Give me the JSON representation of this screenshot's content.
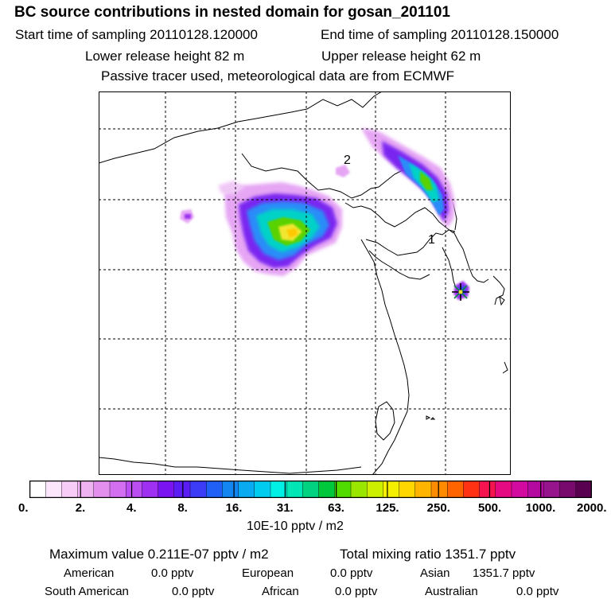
{
  "header": {
    "title": "BC  source contributions in nested domain for gosan_201101",
    "start_time": "Start time of sampling 20110128.120000",
    "end_time": "End time of sampling 20110128.150000",
    "lower_height": "Lower release height   82 m",
    "upper_height": "Upper release height   62 m",
    "tracer_note": "Passive tracer used, meteorological data are from ECMWF"
  },
  "map": {
    "labels": {
      "source_1": "1",
      "source_2": "2"
    },
    "icons": [
      "receptor-star-icon"
    ]
  },
  "colorbar": {
    "colors": [
      "#ffffff",
      "#fce6fc",
      "#f7ccf7",
      "#f0b3f2",
      "#e28fee",
      "#d26ef0",
      "#bb4ef0",
      "#9f30f2",
      "#7a14f0",
      "#5a1ef5",
      "#3c3cf7",
      "#2060f7",
      "#1486f2",
      "#0aaaf0",
      "#00ccf0",
      "#00f0e6",
      "#00e6b4",
      "#00d282",
      "#00c83c",
      "#50dc00",
      "#9be600",
      "#cdf000",
      "#f5f000",
      "#ffd700",
      "#ffb400",
      "#ff8c00",
      "#ff6400",
      "#ff3214",
      "#f51450",
      "#e60a82",
      "#d20aa0",
      "#b40aa0",
      "#96148c",
      "#780a6e",
      "#5a0050"
    ],
    "ticks": [
      "0.",
      "2.",
      "4.",
      "8.",
      "16.",
      "31.",
      "63.",
      "125.",
      "250.",
      "500.",
      "1000.",
      "2000."
    ],
    "unit": "10E-10 pptv / m2"
  },
  "stats": {
    "max_value": "Maximum value  0.211E-07 pptv / m2",
    "total_mixing": "Total mixing ratio     1351.7 pptv"
  },
  "regions": [
    {
      "name": "American",
      "value": "0.0 pptv"
    },
    {
      "name": "European",
      "value": "0.0 pptv"
    },
    {
      "name": "Asian",
      "value": "1351.7 pptv"
    },
    {
      "name": "South American",
      "value": "0.0 pptv"
    },
    {
      "name": "African",
      "value": "0.0 pptv"
    },
    {
      "name": "Australian",
      "value": "0.0 pptv"
    }
  ]
}
